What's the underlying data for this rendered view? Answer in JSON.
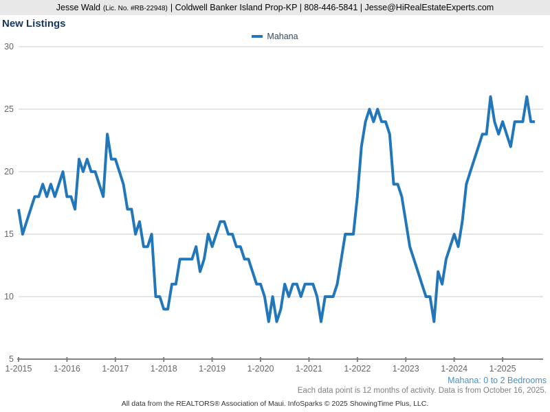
{
  "header": {
    "name": "Jesse Wald",
    "license": "(Lic. No. #RB-22948)",
    "rest": "| Coldwell Banker Island Prop-KP | 808-446-5841 | Jesse@HiRealEstateExperts.com"
  },
  "page_title": "New Listings",
  "legend": {
    "label": "Mahana"
  },
  "footnotes": {
    "series_description": "Mahana: 0 to 2 Bedrooms",
    "data_note": "Each data point is 12 months of activity. Data is from October 16, 2025.",
    "attribution": "All data from the REALTORS® Association of Maui. InfoSparks © 2025 ShowingTime Plus, LLC."
  },
  "colors": {
    "line": "#2277bb",
    "title": "#17365d",
    "gridline": "#cccccc",
    "axis": "#808080",
    "tick_label": "#666666",
    "footnote_blue": "#4a90c6",
    "header_bg": "#e8e8e8"
  },
  "chart_data": {
    "type": "line",
    "title": "New Listings",
    "x_interval": "monthly",
    "x_start": "1-2015",
    "x_end": "9-2025",
    "x_tick_labels": [
      "1-2015",
      "1-2016",
      "1-2017",
      "1-2018",
      "1-2019",
      "1-2020",
      "1-2021",
      "1-2022",
      "1-2023",
      "1-2024",
      "1-2025"
    ],
    "y_ticks": [
      30,
      25,
      20,
      15,
      10,
      5
    ],
    "ylim": [
      5,
      30
    ],
    "grid": true,
    "legend_position": "top-center",
    "series": [
      {
        "name": "Mahana",
        "description": "Mahana: 0 to 2 Bedrooms",
        "values": [
          17,
          15,
          16,
          17,
          18,
          18,
          19,
          18,
          19,
          18,
          19,
          20,
          18,
          18,
          17,
          21,
          20,
          21,
          20,
          20,
          19,
          18,
          23,
          21,
          21,
          20,
          19,
          17,
          17,
          15,
          16,
          14,
          14,
          15,
          10,
          10,
          9,
          9,
          11,
          11,
          13,
          13,
          13,
          13,
          14,
          12,
          13,
          15,
          14,
          15,
          16,
          16,
          15,
          15,
          14,
          14,
          13,
          13,
          12,
          11,
          11,
          10,
          8,
          10,
          8,
          9,
          11,
          10,
          11,
          11,
          10,
          11,
          11,
          11,
          10,
          8,
          10,
          10,
          10,
          11,
          13,
          15,
          15,
          15,
          18,
          22,
          24,
          25,
          24,
          25,
          24,
          24,
          23,
          19,
          19,
          18,
          16,
          14,
          13,
          12,
          11,
          10,
          10,
          8,
          12,
          11,
          13,
          14,
          15,
          14,
          16,
          19,
          20,
          21,
          22,
          23,
          23,
          26,
          24,
          23,
          24,
          23,
          22,
          24,
          24,
          24,
          26,
          24,
          24
        ]
      }
    ]
  }
}
